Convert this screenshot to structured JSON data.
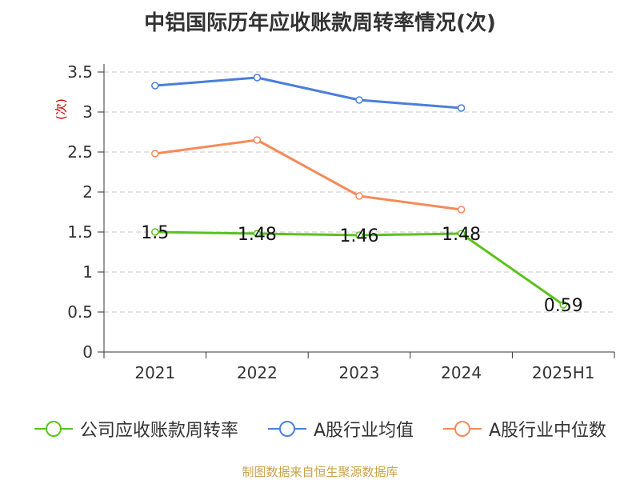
{
  "title": "中铝国际历年应收账款周转率情况(次)",
  "source": "制图数据来自恒生聚源数据库",
  "chart_data": {
    "type": "line",
    "title": "中铝国际历年应收账款周转率情况(次)",
    "ylabel": "(次)",
    "xlabel": "",
    "ylim": [
      0,
      3.5
    ],
    "ytick_step": 0.5,
    "yticks": [
      "0",
      "0.5",
      "1",
      "1.5",
      "2",
      "2.5",
      "3",
      "3.5"
    ],
    "grid": true,
    "legend_position": "bottom",
    "categories": [
      "2021",
      "2022",
      "2023",
      "2024",
      "2025H1"
    ],
    "series": [
      {
        "name": "公司应收账款周转率",
        "color": "#5ac21e",
        "values": [
          1.5,
          1.48,
          1.46,
          1.48,
          0.59
        ],
        "labels": [
          "1.5",
          "1.48",
          "1.46",
          "1.48",
          "0.59"
        ]
      },
      {
        "name": "A股行业均值",
        "color": "#4a7fdb",
        "values": [
          3.33,
          3.43,
          3.15,
          3.05,
          null
        ]
      },
      {
        "name": "A股行业中位数",
        "color": "#f58a5a",
        "values": [
          2.48,
          2.65,
          1.95,
          1.78,
          null
        ]
      }
    ]
  }
}
